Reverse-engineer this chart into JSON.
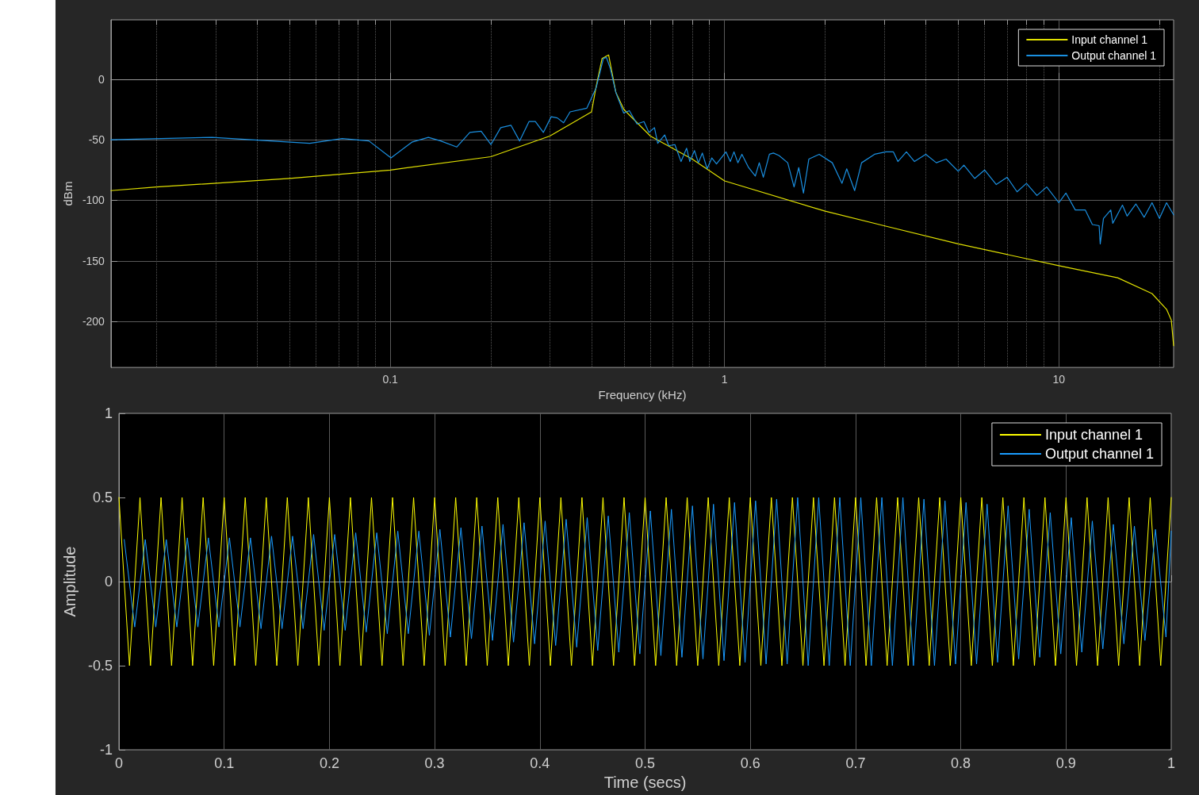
{
  "chart_data": [
    {
      "type": "line",
      "xlabel": "Frequency (kHz)",
      "ylabel": "dBm",
      "log": "x",
      "grid": true,
      "legend": "top right",
      "marker": "none",
      "line_style": "solid",
      "xlim": [
        0.0146,
        22.05
      ],
      "ylim": [
        -238,
        49
      ],
      "xticks": [
        {
          "value": 0.02,
          "label": null
        },
        {
          "value": 0.03,
          "label": null
        },
        {
          "value": 0.04,
          "label": null
        },
        {
          "value": 0.05,
          "label": null
        },
        {
          "value": 0.06,
          "label": null
        },
        {
          "value": 0.07,
          "label": null
        },
        {
          "value": 0.08,
          "label": null
        },
        {
          "value": 0.09,
          "label": null
        },
        0.1,
        {
          "value": 0.2,
          "label": null
        },
        {
          "value": 0.3,
          "label": null
        },
        {
          "value": 0.4,
          "label": null
        },
        {
          "value": 0.5,
          "label": null
        },
        {
          "value": 0.6,
          "label": null
        },
        {
          "value": 0.7,
          "label": null
        },
        {
          "value": 0.8,
          "label": null
        },
        {
          "value": 0.9,
          "label": null
        },
        1,
        {
          "value": 2,
          "label": null
        },
        {
          "value": 3,
          "label": null
        },
        {
          "value": 4,
          "label": null
        },
        {
          "value": 5,
          "label": null
        },
        {
          "value": 6,
          "label": null
        },
        {
          "value": 7,
          "label": null
        },
        {
          "value": 8,
          "label": null
        },
        {
          "value": 9,
          "label": null
        },
        10,
        {
          "value": 20,
          "label": null
        }
      ],
      "yticks": [
        -200,
        -150,
        -100,
        -50,
        0
      ],
      "series": [
        {
          "name": "Input channel 1",
          "color": "#e0e000",
          "x": [
            0.0146,
            0.02,
            0.05,
            0.1,
            0.2,
            0.3,
            0.4,
            0.413,
            0.43,
            0.45,
            0.473,
            0.5,
            0.6,
            0.8,
            1,
            2,
            3,
            5,
            10,
            15,
            19,
            21,
            21.7,
            22.05
          ],
          "values": [
            -92,
            -89,
            -82,
            -75,
            -64,
            -47,
            -27,
            -6,
            17,
            20,
            -11,
            -25,
            -47,
            -66,
            -84,
            -109,
            -121,
            -136,
            -154,
            -164,
            -177,
            -190,
            -199,
            -220
          ]
        },
        {
          "name": "Output channel 1",
          "color": "#1a8fe0",
          "x": [
            0.0146,
            0.0293,
            0.0574,
            0.0718,
            0.0863,
            0.1005,
            0.116,
            0.13,
            0.1415,
            0.158,
            0.173,
            0.187,
            0.2,
            0.214,
            0.2296,
            0.2437,
            0.26,
            0.2716,
            0.287,
            0.303,
            0.316,
            0.33,
            0.345,
            0.387,
            0.413,
            0.434,
            0.443,
            0.455,
            0.473,
            0.499,
            0.519,
            0.547,
            0.574,
            0.594,
            0.617,
            0.631,
            0.662,
            0.681,
            0.71,
            0.741,
            0.77,
            0.787,
            0.813,
            0.835,
            0.858,
            0.887,
            0.916,
            0.946,
            1.01,
            1.04,
            1.067,
            1.096,
            1.127,
            1.18,
            1.236,
            1.27,
            1.306,
            1.362,
            1.4,
            1.455,
            1.545,
            1.614,
            1.667,
            1.722,
            1.787,
            1.919,
            2.1,
            2.245,
            2.32,
            2.45,
            2.57,
            2.81,
            3.04,
            3.2,
            3.3,
            3.5,
            3.7,
            4.0,
            4.3,
            4.6,
            5.0,
            5.2,
            5.6,
            6.0,
            6.5,
            7.0,
            7.5,
            8.0,
            8.6,
            9.2,
            10,
            10.5,
            11.2,
            12,
            12.6,
            13.2,
            13.3,
            13.6,
            14.3,
            14.5,
            15.5,
            16,
            17,
            18,
            19,
            20,
            21,
            22.05
          ],
          "values": [
            -50,
            -48,
            -53,
            -49,
            -51,
            -65,
            -52,
            -48,
            -51,
            -56,
            -44,
            -43,
            -54,
            -40,
            -38,
            -51,
            -35,
            -35,
            -44,
            -31,
            -32,
            -36,
            -27,
            -24,
            -7,
            17,
            18,
            9,
            -11,
            -28,
            -26,
            -37,
            -35,
            -44,
            -40,
            -53,
            -46,
            -55,
            -54,
            -68,
            -57,
            -68,
            -59,
            -69,
            -61,
            -74,
            -65,
            -70,
            -60,
            -68,
            -60,
            -69,
            -62,
            -73,
            -80,
            -69,
            -81,
            -62,
            -61,
            -63,
            -69,
            -89,
            -73,
            -94,
            -66,
            -62,
            -69,
            -86,
            -74,
            -92,
            -69,
            -62,
            -60,
            -60,
            -68,
            -60,
            -68,
            -62,
            -69,
            -66,
            -76,
            -71,
            -82,
            -75,
            -87,
            -81,
            -93,
            -86,
            -96,
            -89,
            -102,
            -94,
            -108,
            -108,
            -120,
            -121,
            -136,
            -115,
            -108,
            -119,
            -104,
            -113,
            -103,
            -114,
            -102,
            -115,
            -102,
            -112
          ]
        }
      ]
    },
    {
      "type": "line",
      "xlabel": "Time (secs)",
      "ylabel": "Amplitude",
      "grid": "x",
      "legend": "top right",
      "marker": "none",
      "line_style": "solid",
      "xlim": [
        0,
        1
      ],
      "ylim": [
        -1,
        1
      ],
      "xticks": [
        0,
        0.1,
        0.2,
        0.3,
        0.4,
        0.5,
        0.6,
        0.7,
        0.8,
        0.9,
        1
      ],
      "yticks": [
        -1,
        -0.5,
        0,
        0.5,
        1
      ],
      "x": [
        0,
        0.01,
        0.02,
        0.03,
        0.04,
        0.05,
        0.06,
        0.07,
        0.08,
        0.09,
        0.1,
        0.11,
        0.12,
        0.13,
        0.14,
        0.15,
        0.16,
        0.17,
        0.18,
        0.19,
        0.2,
        0.21,
        0.22,
        0.23,
        0.24,
        0.25,
        0.26,
        0.27,
        0.28,
        0.29,
        0.3,
        0.31,
        0.32,
        0.33,
        0.34,
        0.35,
        0.36,
        0.37,
        0.38,
        0.39,
        0.4,
        0.41,
        0.42,
        0.43,
        0.44,
        0.45,
        0.46,
        0.47,
        0.48,
        0.49,
        0.5,
        0.51,
        0.52,
        0.53,
        0.54,
        0.55,
        0.56,
        0.57,
        0.58,
        0.59,
        0.6,
        0.61,
        0.62,
        0.63,
        0.64,
        0.65,
        0.66,
        0.67,
        0.68,
        0.69,
        0.7,
        0.71,
        0.72,
        0.73,
        0.74,
        0.75,
        0.76,
        0.77,
        0.78,
        0.79,
        0.8,
        0.81,
        0.82,
        0.83,
        0.84,
        0.85,
        0.86,
        0.87,
        0.88,
        0.89,
        0.9,
        0.91,
        0.92,
        0.93,
        0.94,
        0.95,
        0.96,
        0.97,
        0.98,
        0.99,
        1
      ],
      "series": [
        {
          "name": "Input channel 1",
          "color": "#ffff00",
          "values": [
            0.5,
            -0.5,
            0.5,
            -0.5,
            0.5,
            -0.5,
            0.5,
            -0.5,
            0.5,
            -0.5,
            0.5,
            -0.5,
            0.5,
            -0.5,
            0.5,
            -0.5,
            0.5,
            -0.5,
            0.5,
            -0.5,
            0.5,
            -0.5,
            0.5,
            -0.5,
            0.5,
            -0.5,
            0.5,
            -0.5,
            0.5,
            -0.5,
            0.5,
            -0.5,
            0.5,
            -0.5,
            0.5,
            -0.5,
            0.5,
            -0.5,
            0.5,
            -0.5,
            0.5,
            -0.5,
            0.5,
            -0.5,
            0.5,
            -0.5,
            0.5,
            -0.5,
            0.5,
            -0.5,
            0.5,
            -0.5,
            0.5,
            -0.5,
            0.5,
            -0.5,
            0.5,
            -0.5,
            0.5,
            -0.5,
            0.5,
            -0.5,
            0.5,
            -0.5,
            0.5,
            -0.5,
            0.5,
            -0.5,
            0.5,
            -0.5,
            0.5,
            -0.5,
            0.5,
            -0.5,
            0.5,
            -0.5,
            0.5,
            -0.5,
            0.5,
            -0.5,
            0.5,
            -0.5,
            0.5,
            -0.5,
            0.5,
            -0.5,
            0.5,
            -0.5,
            0.5,
            -0.5,
            0.5,
            -0.5,
            0.5,
            -0.5,
            0.5,
            -0.5,
            0.5,
            -0.5,
            0.5,
            -0.5,
            0.5
          ]
        },
        {
          "name": "Output channel 1",
          "color": "#1a9cff",
          "x": [
            0.005,
            0.015,
            0.025,
            0.035,
            0.045,
            0.055,
            0.065,
            0.075,
            0.085,
            0.095,
            0.105,
            0.115,
            0.125,
            0.135,
            0.145,
            0.155,
            0.165,
            0.175,
            0.185,
            0.195,
            0.205,
            0.215,
            0.225,
            0.235,
            0.245,
            0.255,
            0.265,
            0.275,
            0.285,
            0.295,
            0.305,
            0.315,
            0.325,
            0.335,
            0.345,
            0.355,
            0.365,
            0.375,
            0.385,
            0.395,
            0.405,
            0.415,
            0.425,
            0.435,
            0.445,
            0.455,
            0.465,
            0.475,
            0.485,
            0.495,
            0.505,
            0.515,
            0.525,
            0.535,
            0.545,
            0.555,
            0.565,
            0.575,
            0.585,
            0.595,
            0.605,
            0.615,
            0.625,
            0.635,
            0.645,
            0.655,
            0.665,
            0.675,
            0.685,
            0.695,
            0.705,
            0.715,
            0.725,
            0.735,
            0.745,
            0.755,
            0.765,
            0.775,
            0.785,
            0.795,
            0.805,
            0.815,
            0.825,
            0.835,
            0.845,
            0.855,
            0.865,
            0.875,
            0.885,
            0.895,
            0.905,
            0.915,
            0.925,
            0.935,
            0.945,
            0.955,
            0.965,
            0.975,
            0.985,
            0.995,
            1
          ],
          "values": [
            0.25,
            -0.27,
            0.25,
            -0.27,
            0.25,
            -0.27,
            0.26,
            -0.27,
            0.26,
            -0.27,
            0.26,
            -0.27,
            0.26,
            -0.28,
            0.27,
            -0.28,
            0.27,
            -0.28,
            0.28,
            -0.29,
            0.28,
            -0.29,
            0.29,
            -0.3,
            0.29,
            -0.31,
            0.3,
            -0.31,
            0.3,
            -0.32,
            0.31,
            -0.33,
            0.32,
            -0.34,
            0.33,
            -0.35,
            0.34,
            -0.36,
            0.35,
            -0.37,
            0.36,
            -0.38,
            0.37,
            -0.39,
            0.38,
            -0.41,
            0.39,
            -0.42,
            0.41,
            -0.43,
            0.42,
            -0.44,
            0.43,
            -0.45,
            0.45,
            -0.46,
            0.46,
            -0.47,
            0.47,
            -0.48,
            0.48,
            -0.49,
            0.49,
            -0.49,
            0.5,
            -0.5,
            0.5,
            -0.5,
            0.5,
            -0.5,
            0.5,
            -0.5,
            0.5,
            -0.5,
            0.5,
            -0.5,
            0.49,
            -0.5,
            0.48,
            -0.49,
            0.47,
            -0.49,
            0.46,
            -0.48,
            0.45,
            -0.46,
            0.43,
            -0.45,
            0.41,
            -0.43,
            0.38,
            -0.42,
            0.36,
            -0.4,
            0.34,
            -0.37,
            0.33,
            -0.35,
            0.31,
            -0.33,
            0.3
          ]
        }
      ]
    }
  ]
}
